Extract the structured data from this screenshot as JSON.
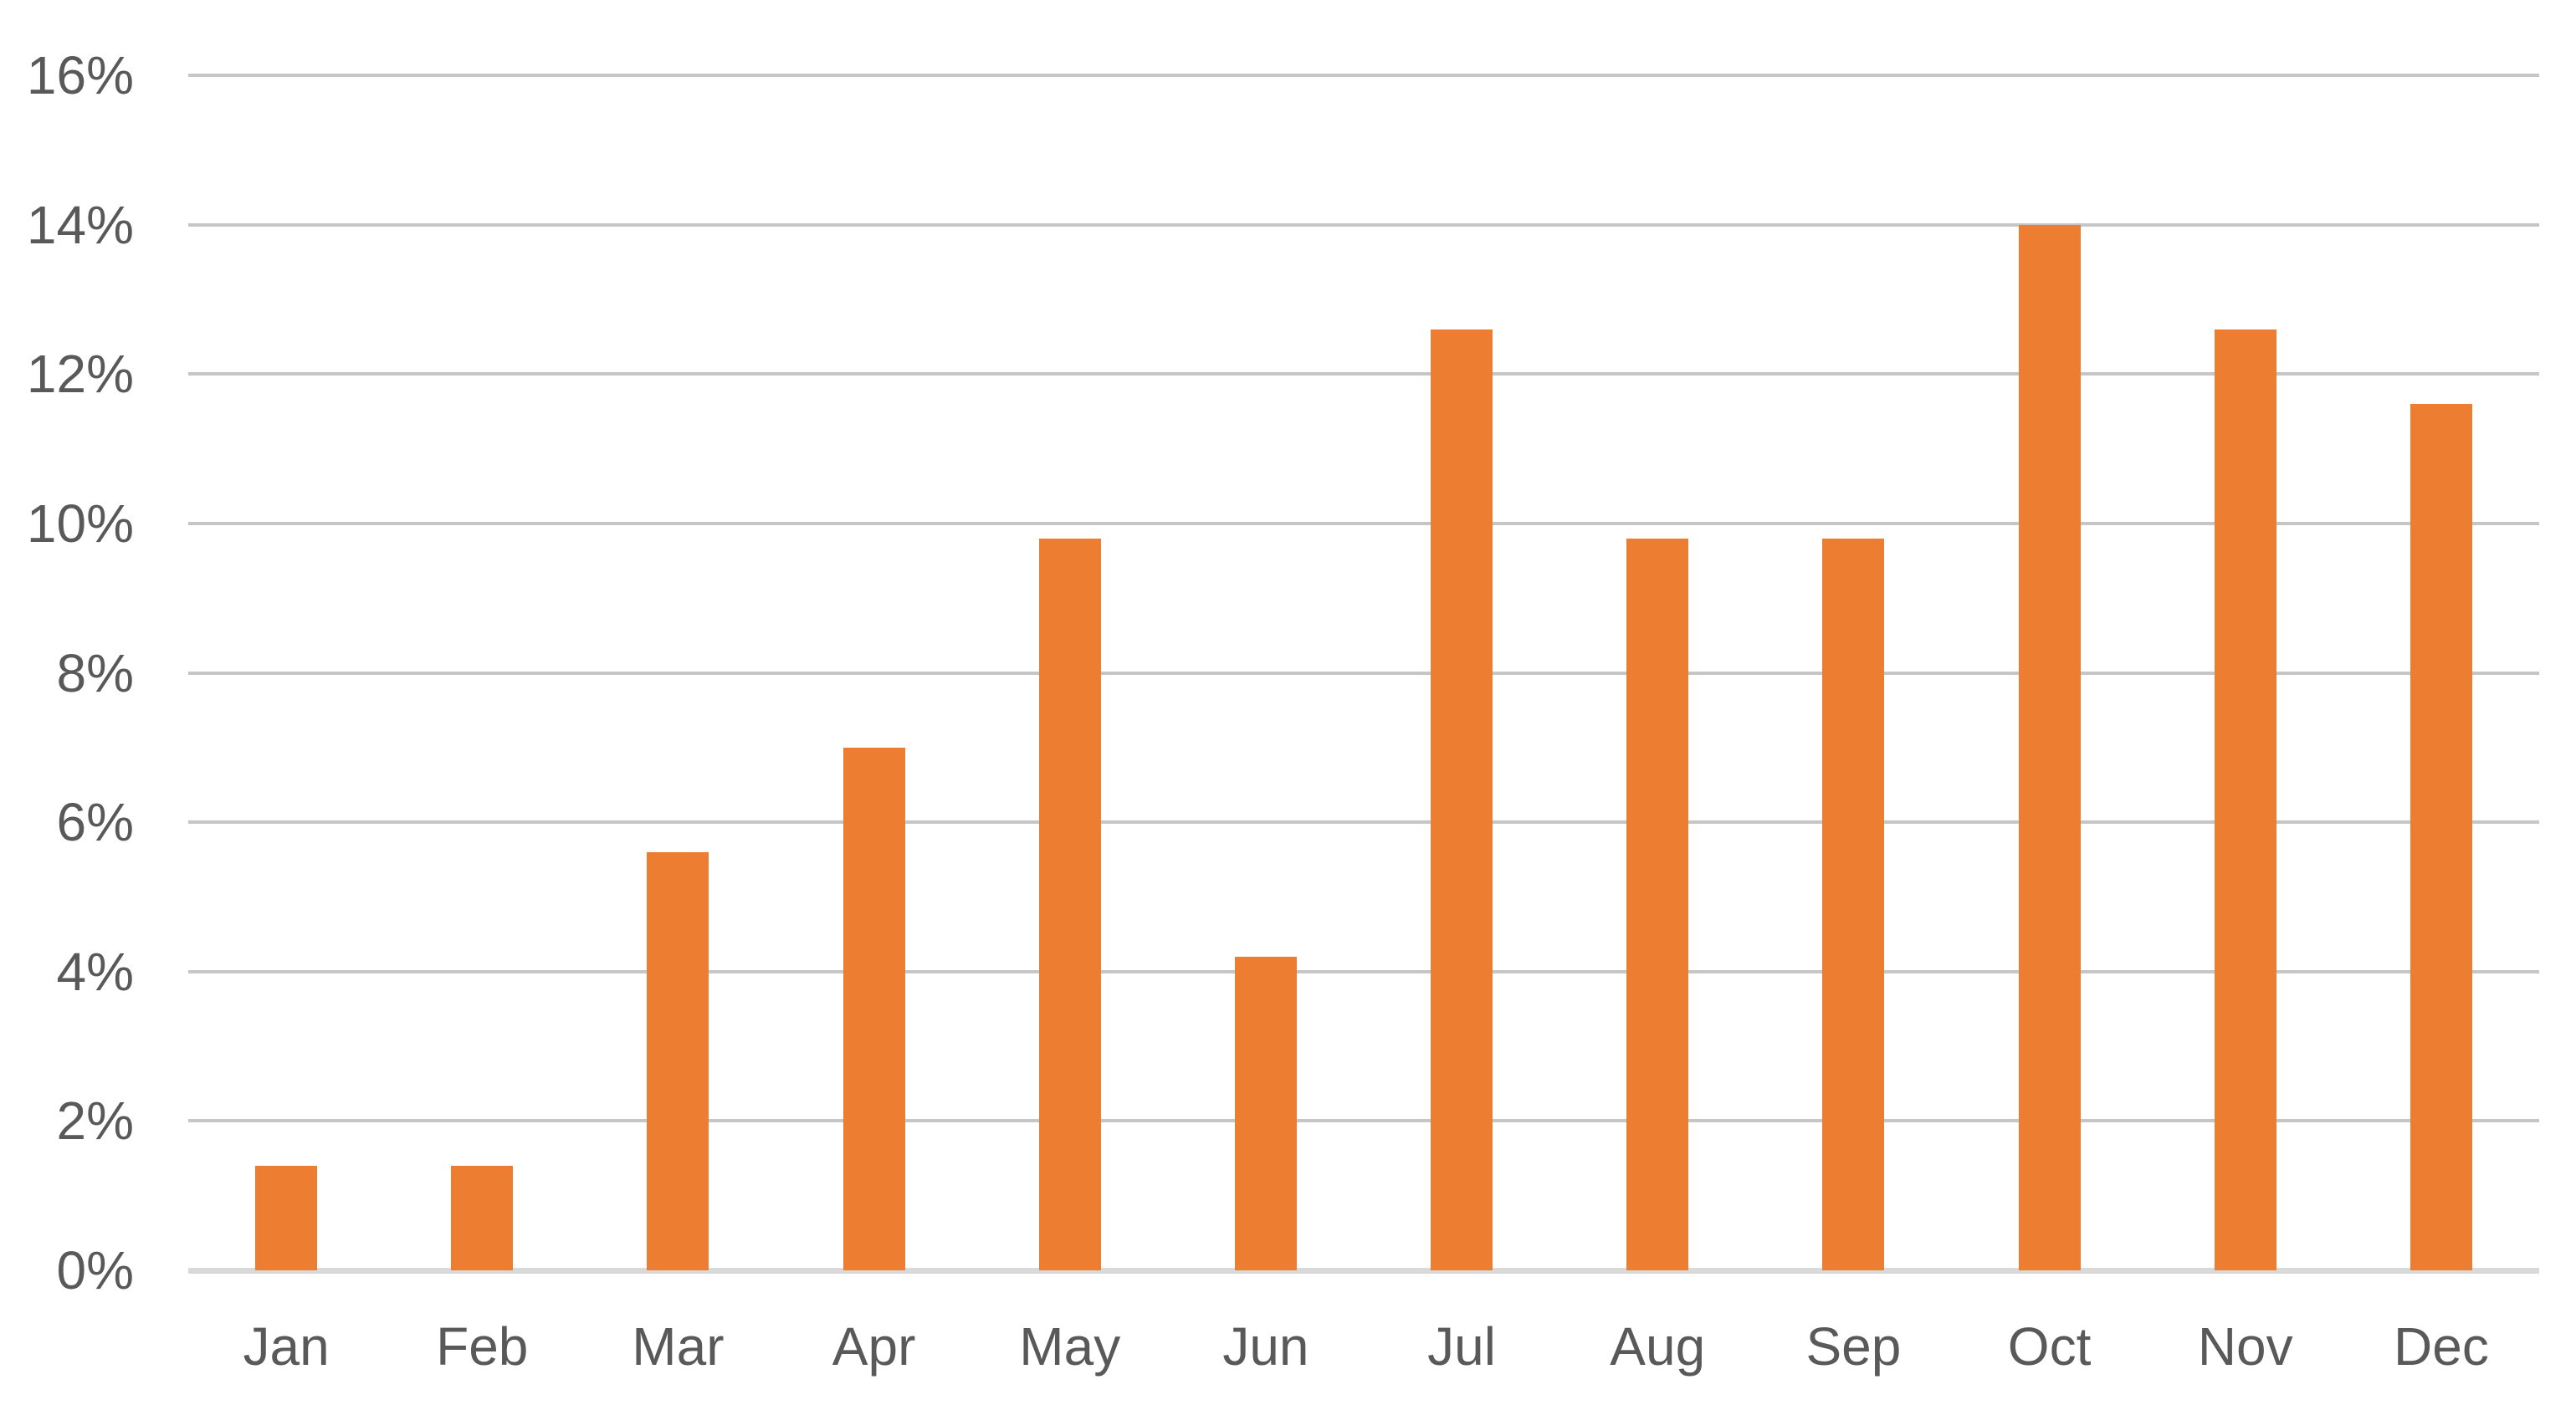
{
  "chart_data": {
    "type": "bar",
    "title": "",
    "xlabel": "",
    "ylabel": "",
    "categories": [
      "Jan",
      "Feb",
      "Mar",
      "Apr",
      "May",
      "Jun",
      "Jul",
      "Aug",
      "Sep",
      "Oct",
      "Nov",
      "Dec"
    ],
    "values": [
      1.4,
      1.4,
      5.6,
      7.0,
      9.8,
      4.2,
      12.6,
      9.8,
      9.8,
      14.0,
      12.6,
      11.6
    ],
    "ylim": [
      0,
      16
    ],
    "ytick_step": 2,
    "ytick_labels": [
      "0%",
      "2%",
      "4%",
      "6%",
      "8%",
      "10%",
      "12%",
      "14%",
      "16%"
    ],
    "grid": true,
    "legend": false,
    "bar_color": "#ED7D31",
    "gridline_color": "#C6C6C6",
    "baseline_color": "#D9D9D9",
    "label_color": "#595959",
    "background_color": "#FFFFFF"
  }
}
